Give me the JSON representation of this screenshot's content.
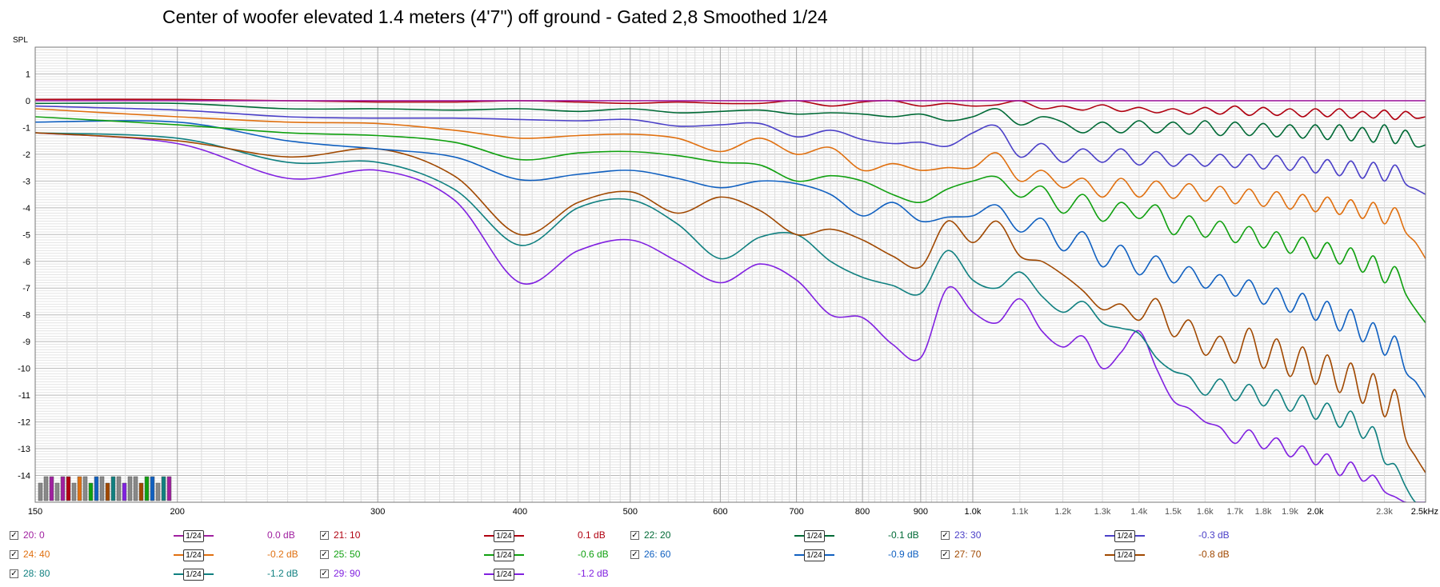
{
  "chart_data": {
    "type": "line",
    "title": "Center of woofer elevated 1.4 meters (4'7\") off ground - Gated 2,8 Smoothed 1/24",
    "ylabel": "SPL",
    "xlabel": "",
    "x_scale": "log",
    "xlim": [
      150,
      2500
    ],
    "ylim": [
      -15,
      2
    ],
    "grid": true,
    "legend": "bottom",
    "y_ticks": [
      {
        "v": 1,
        "label": "1"
      },
      {
        "v": 0,
        "label": "0"
      },
      {
        "v": -1,
        "label": "-1"
      },
      {
        "v": -2,
        "label": "-2"
      },
      {
        "v": -3,
        "label": "-3"
      },
      {
        "v": -4,
        "label": "-4"
      },
      {
        "v": -5,
        "label": "-5"
      },
      {
        "v": -6,
        "label": "-6"
      },
      {
        "v": -7,
        "label": "-7"
      },
      {
        "v": -8,
        "label": "-8"
      },
      {
        "v": -9,
        "label": "-9"
      },
      {
        "v": -10,
        "label": "-10"
      },
      {
        "v": -11,
        "label": "-11"
      },
      {
        "v": -12,
        "label": "-12"
      },
      {
        "v": -13,
        "label": "-13"
      },
      {
        "v": -14,
        "label": "-14"
      }
    ],
    "x_ticks": [
      {
        "v": 150,
        "label": "150"
      },
      {
        "v": 200,
        "label": "200"
      },
      {
        "v": 300,
        "label": "300"
      },
      {
        "v": 400,
        "label": "400"
      },
      {
        "v": 500,
        "label": "500"
      },
      {
        "v": 600,
        "label": "600"
      },
      {
        "v": 700,
        "label": "700"
      },
      {
        "v": 800,
        "label": "800"
      },
      {
        "v": 900,
        "label": "900"
      },
      {
        "v": 1000,
        "label": "1.0k"
      },
      {
        "v": 1100,
        "label": "1.1k"
      },
      {
        "v": 1200,
        "label": "1.2k"
      },
      {
        "v": 1300,
        "label": "1.3k"
      },
      {
        "v": 1400,
        "label": "1.4k"
      },
      {
        "v": 1500,
        "label": "1.5k"
      },
      {
        "v": 1600,
        "label": "1.6k"
      },
      {
        "v": 1700,
        "label": "1.7k"
      },
      {
        "v": 1800,
        "label": "1.8k"
      },
      {
        "v": 1900,
        "label": "1.9k"
      },
      {
        "v": 2000,
        "label": "2.0k"
      },
      {
        "v": 2300,
        "label": "2.3k"
      },
      {
        "v": 2500,
        "label": "2.5kHz"
      }
    ],
    "series": [
      {
        "name": "20: 0",
        "color": "#a020a0",
        "smoothing": "1/24",
        "offset": "0.0 dB",
        "x": [
          150,
          2500
        ],
        "y": [
          0,
          0
        ]
      },
      {
        "name": "21: 10",
        "color": "#b00010",
        "smoothing": "1/24",
        "offset": "0.1 dB",
        "x": [
          150,
          200,
          250,
          300,
          350,
          400,
          450,
          500,
          550,
          600,
          650,
          700,
          750,
          800,
          850,
          900,
          950,
          1000,
          1050,
          1100,
          1150,
          1200,
          1250,
          1300,
          1350,
          1400,
          1450,
          1500,
          1550,
          1600,
          1650,
          1700,
          1750,
          1800,
          1850,
          1900,
          1950,
          2000,
          2050,
          2100,
          2150,
          2200,
          2250,
          2300,
          2350,
          2400,
          2450,
          2500
        ],
        "y": [
          0.05,
          0.05,
          0,
          -0.05,
          -0.05,
          0,
          -0.05,
          -0.1,
          -0.05,
          -0.1,
          -0.1,
          0,
          -0.2,
          -0.05,
          0,
          -0.2,
          -0.1,
          -0.2,
          -0.15,
          0,
          -0.3,
          -0.2,
          -0.35,
          -0.15,
          -0.4,
          -0.25,
          -0.45,
          -0.3,
          -0.5,
          -0.25,
          -0.5,
          -0.2,
          -0.55,
          -0.25,
          -0.55,
          -0.3,
          -0.6,
          -0.3,
          -0.6,
          -0.3,
          -0.65,
          -0.4,
          -0.65,
          -0.35,
          -0.7,
          -0.4,
          -0.65,
          -0.6
        ]
      },
      {
        "name": "22: 20",
        "color": "#006a36",
        "smoothing": "1/24",
        "offset": "-0.1 dB",
        "x": [
          150,
          200,
          250,
          300,
          350,
          400,
          450,
          500,
          550,
          600,
          650,
          700,
          750,
          800,
          850,
          900,
          950,
          1000,
          1050,
          1100,
          1150,
          1200,
          1250,
          1300,
          1350,
          1400,
          1450,
          1500,
          1550,
          1600,
          1650,
          1700,
          1750,
          1800,
          1850,
          1900,
          1950,
          2000,
          2050,
          2100,
          2150,
          2200,
          2250,
          2300,
          2350,
          2400,
          2450,
          2500
        ],
        "y": [
          -0.1,
          -0.1,
          -0.3,
          -0.3,
          -0.35,
          -0.3,
          -0.4,
          -0.3,
          -0.45,
          -0.4,
          -0.35,
          -0.5,
          -0.45,
          -0.5,
          -0.6,
          -0.5,
          -0.75,
          -0.6,
          -0.3,
          -0.9,
          -0.6,
          -0.8,
          -1.2,
          -0.8,
          -1.2,
          -0.75,
          -1.2,
          -0.8,
          -1.25,
          -0.75,
          -1.3,
          -0.8,
          -1.3,
          -0.85,
          -1.35,
          -0.9,
          -1.4,
          -0.9,
          -1.45,
          -0.9,
          -1.5,
          -1.0,
          -1.55,
          -0.9,
          -1.6,
          -1.1,
          -1.7,
          -1.65
        ]
      },
      {
        "name": "23: 30",
        "color": "#4b40c8",
        "smoothing": "1/24",
        "offset": "-0.3 dB",
        "x": [
          150,
          200,
          250,
          300,
          350,
          400,
          450,
          500,
          550,
          600,
          650,
          700,
          750,
          800,
          850,
          900,
          950,
          1000,
          1050,
          1100,
          1150,
          1200,
          1250,
          1300,
          1350,
          1400,
          1450,
          1500,
          1550,
          1600,
          1650,
          1700,
          1750,
          1800,
          1850,
          1900,
          1950,
          2000,
          2050,
          2100,
          2150,
          2200,
          2250,
          2300,
          2350,
          2400,
          2450,
          2500
        ],
        "y": [
          -0.2,
          -0.35,
          -0.6,
          -0.65,
          -0.65,
          -0.7,
          -0.75,
          -0.7,
          -0.95,
          -0.9,
          -0.85,
          -1.35,
          -1.1,
          -1.45,
          -1.6,
          -1.55,
          -1.7,
          -1.2,
          -0.95,
          -2.1,
          -1.6,
          -2.3,
          -1.8,
          -2.3,
          -1.8,
          -2.4,
          -1.9,
          -2.45,
          -2.0,
          -2.45,
          -2.0,
          -2.5,
          -2.0,
          -2.55,
          -2.05,
          -2.6,
          -2.1,
          -2.7,
          -2.2,
          -2.8,
          -2.25,
          -2.9,
          -2.3,
          -3.0,
          -2.4,
          -3.1,
          -3.3,
          -3.5
        ]
      },
      {
        "name": "24: 40",
        "color": "#e07010",
        "smoothing": "1/24",
        "offset": "-0.2 dB",
        "x": [
          150,
          200,
          250,
          300,
          350,
          400,
          450,
          500,
          550,
          600,
          650,
          700,
          750,
          800,
          850,
          900,
          950,
          1000,
          1050,
          1100,
          1150,
          1200,
          1250,
          1300,
          1350,
          1400,
          1450,
          1500,
          1550,
          1600,
          1650,
          1700,
          1750,
          1800,
          1850,
          1900,
          1950,
          2000,
          2050,
          2100,
          2150,
          2200,
          2250,
          2300,
          2350,
          2400,
          2450,
          2500
        ],
        "y": [
          -0.3,
          -0.6,
          -0.8,
          -0.85,
          -1.1,
          -1.4,
          -1.3,
          -1.25,
          -1.4,
          -1.9,
          -1.4,
          -2.0,
          -1.75,
          -2.6,
          -2.35,
          -2.6,
          -2.5,
          -2.5,
          -1.95,
          -3.0,
          -2.6,
          -3.25,
          -2.9,
          -3.6,
          -2.9,
          -3.6,
          -3.0,
          -3.65,
          -3.1,
          -3.75,
          -3.2,
          -3.85,
          -3.3,
          -3.95,
          -3.4,
          -4.05,
          -3.5,
          -4.15,
          -3.6,
          -4.25,
          -3.7,
          -4.4,
          -3.8,
          -4.6,
          -4.0,
          -4.9,
          -5.3,
          -5.9
        ]
      },
      {
        "name": "25: 50",
        "color": "#10a010",
        "smoothing": "1/24",
        "offset": "-0.6 dB",
        "x": [
          150,
          200,
          250,
          300,
          350,
          400,
          450,
          500,
          550,
          600,
          650,
          700,
          750,
          800,
          850,
          900,
          950,
          1000,
          1050,
          1100,
          1150,
          1200,
          1250,
          1300,
          1350,
          1400,
          1450,
          1500,
          1550,
          1600,
          1650,
          1700,
          1750,
          1800,
          1850,
          1900,
          1950,
          2000,
          2050,
          2100,
          2150,
          2200,
          2250,
          2300,
          2350,
          2400,
          2450,
          2500
        ],
        "y": [
          -0.6,
          -0.9,
          -1.2,
          -1.3,
          -1.55,
          -2.2,
          -1.95,
          -1.9,
          -2.05,
          -2.3,
          -2.4,
          -3.0,
          -2.8,
          -3.0,
          -3.5,
          -3.8,
          -3.3,
          -3.0,
          -2.85,
          -3.6,
          -3.2,
          -4.2,
          -3.5,
          -4.5,
          -3.8,
          -4.4,
          -3.9,
          -5.0,
          -4.3,
          -5.1,
          -4.5,
          -5.3,
          -4.7,
          -5.5,
          -4.9,
          -5.7,
          -5.1,
          -5.9,
          -5.3,
          -6.1,
          -5.5,
          -6.4,
          -5.8,
          -6.8,
          -6.2,
          -7.2,
          -7.8,
          -8.3
        ]
      },
      {
        "name": "26: 60",
        "color": "#1060c0",
        "smoothing": "1/24",
        "offset": "-0.9 dB",
        "x": [
          150,
          200,
          250,
          300,
          350,
          400,
          450,
          500,
          550,
          600,
          650,
          700,
          750,
          800,
          850,
          900,
          950,
          1000,
          1050,
          1100,
          1150,
          1200,
          1250,
          1300,
          1350,
          1400,
          1450,
          1500,
          1550,
          1600,
          1650,
          1700,
          1750,
          1800,
          1850,
          1900,
          1950,
          2000,
          2050,
          2100,
          2150,
          2200,
          2250,
          2300,
          2350,
          2400,
          2450,
          2500
        ],
        "y": [
          -0.8,
          -0.8,
          -1.5,
          -1.8,
          -2.1,
          -2.95,
          -2.75,
          -2.6,
          -2.9,
          -3.25,
          -3.0,
          -3.1,
          -3.5,
          -4.3,
          -3.8,
          -4.5,
          -4.35,
          -4.3,
          -3.9,
          -4.9,
          -4.4,
          -5.6,
          -4.9,
          -6.2,
          -5.4,
          -6.5,
          -5.8,
          -6.8,
          -6.2,
          -7.0,
          -6.5,
          -7.3,
          -6.7,
          -7.6,
          -7.0,
          -7.9,
          -7.2,
          -8.2,
          -7.5,
          -8.6,
          -7.8,
          -9.0,
          -8.3,
          -9.5,
          -8.8,
          -10.1,
          -10.5,
          -11.1
        ]
      },
      {
        "name": "27: 70",
        "color": "#a04800",
        "smoothing": "1/24",
        "offset": "-0.8 dB",
        "x": [
          150,
          200,
          250,
          300,
          350,
          400,
          450,
          500,
          550,
          600,
          650,
          700,
          750,
          800,
          850,
          900,
          950,
          1000,
          1050,
          1100,
          1150,
          1200,
          1250,
          1300,
          1350,
          1400,
          1450,
          1500,
          1550,
          1600,
          1650,
          1700,
          1750,
          1800,
          1850,
          1900,
          1950,
          2000,
          2050,
          2100,
          2150,
          2200,
          2250,
          2300,
          2350,
          2400,
          2450,
          2500
        ],
        "y": [
          -1.2,
          -1.5,
          -2.1,
          -1.8,
          -2.8,
          -5.0,
          -3.8,
          -3.4,
          -4.2,
          -3.6,
          -4.1,
          -5.0,
          -4.8,
          -5.2,
          -5.8,
          -6.2,
          -4.5,
          -5.3,
          -4.5,
          -5.8,
          -6.0,
          -6.5,
          -7.1,
          -7.8,
          -7.6,
          -8.2,
          -7.4,
          -8.8,
          -8.2,
          -9.5,
          -8.8,
          -9.8,
          -8.5,
          -10.0,
          -8.9,
          -10.3,
          -9.2,
          -10.6,
          -9.5,
          -10.9,
          -9.8,
          -11.3,
          -10.2,
          -11.8,
          -10.8,
          -12.6,
          -13.3,
          -13.9
        ]
      },
      {
        "name": "28: 80",
        "color": "#108080",
        "smoothing": "1/24",
        "offset": "-1.2 dB",
        "x": [
          150,
          200,
          250,
          300,
          350,
          400,
          450,
          500,
          550,
          600,
          650,
          700,
          750,
          800,
          850,
          900,
          950,
          1000,
          1050,
          1100,
          1150,
          1200,
          1250,
          1300,
          1350,
          1400,
          1450,
          1500,
          1550,
          1600,
          1650,
          1700,
          1750,
          1800,
          1850,
          1900,
          1950,
          2000,
          2050,
          2100,
          2150,
          2200,
          2250,
          2300,
          2350,
          2400,
          2450,
          2500
        ],
        "y": [
          -1.2,
          -1.4,
          -2.3,
          -2.3,
          -3.3,
          -5.4,
          -4.0,
          -3.7,
          -4.6,
          -5.9,
          -5.1,
          -5.0,
          -6.0,
          -6.6,
          -6.9,
          -7.2,
          -5.6,
          -6.7,
          -7.0,
          -6.4,
          -7.3,
          -7.9,
          -7.5,
          -8.3,
          -8.5,
          -8.7,
          -9.6,
          -10.1,
          -10.3,
          -11.0,
          -10.4,
          -11.2,
          -10.6,
          -11.4,
          -10.8,
          -11.6,
          -11.0,
          -11.9,
          -11.3,
          -12.2,
          -11.6,
          -12.6,
          -12.2,
          -13.5,
          -13.6,
          -14.4,
          -15.0,
          -15.0
        ]
      },
      {
        "name": "29: 90",
        "color": "#8020e0",
        "smoothing": "1/24",
        "offset": "-1.2 dB",
        "x": [
          150,
          200,
          250,
          300,
          350,
          400,
          450,
          500,
          550,
          600,
          650,
          700,
          750,
          800,
          850,
          900,
          950,
          1000,
          1050,
          1100,
          1150,
          1200,
          1250,
          1300,
          1350,
          1400,
          1450,
          1500,
          1550,
          1600,
          1650,
          1700,
          1750,
          1800,
          1850,
          1900,
          1950,
          2000,
          2050,
          2100,
          2150,
          2200,
          2250,
          2300,
          2350,
          2400,
          2450,
          2500
        ],
        "y": [
          -1.2,
          -1.6,
          -2.9,
          -2.6,
          -3.7,
          -6.8,
          -5.6,
          -5.2,
          -6.0,
          -6.8,
          -6.1,
          -6.7,
          -8.0,
          -8.1,
          -9.1,
          -9.6,
          -7.0,
          -7.9,
          -8.3,
          -7.4,
          -8.6,
          -9.2,
          -8.8,
          -10.0,
          -9.4,
          -8.6,
          -10.0,
          -11.2,
          -11.5,
          -12.0,
          -12.2,
          -12.8,
          -12.3,
          -13.0,
          -12.6,
          -13.3,
          -12.9,
          -13.6,
          -13.2,
          -14.0,
          -13.5,
          -14.2,
          -14.0,
          -14.6,
          -14.8,
          -15.0,
          -15.0,
          -15.0
        ]
      }
    ]
  }
}
